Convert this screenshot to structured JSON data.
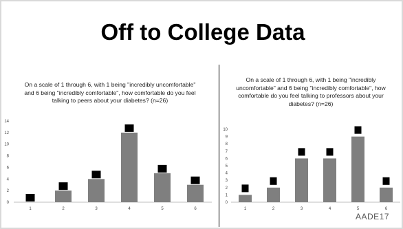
{
  "slide": {
    "title": "Off to College Data",
    "logo": "AADE17"
  },
  "chart_data": [
    {
      "type": "bar",
      "title": "On a scale of 1 through 6, with 1 being \"incredibly uncomfortable\" and 6 being \"incredibly comfortable\", how comfortable do you feel talking to peers about your diabetes? (n=26)",
      "categories": [
        "1",
        "2",
        "3",
        "4",
        "5",
        "6"
      ],
      "values": [
        0,
        2,
        4,
        12,
        5,
        3
      ],
      "ylim": [
        0,
        14
      ],
      "yticks": [
        0,
        2,
        4,
        6,
        8,
        10,
        12,
        14
      ],
      "xlabel": "",
      "ylabel": "",
      "grid": false,
      "colors": {
        "bar": "#7f7f7f",
        "marker": "#000000"
      }
    },
    {
      "type": "bar",
      "title": "On a scale of 1 through 6, with 1 being \"incredibly uncomfortable\" and 6 being \"incredibly comfortable\", how comfortable do you feel talking to professors about your diabetes? (n=26)",
      "categories": [
        "1",
        "2",
        "3",
        "4",
        "5",
        "6"
      ],
      "values": [
        1,
        2,
        6,
        6,
        9,
        2
      ],
      "ylim": [
        0,
        10
      ],
      "yticks": [
        0,
        1,
        2,
        3,
        4,
        5,
        6,
        7,
        8,
        9,
        10
      ],
      "xlabel": "",
      "ylabel": "",
      "grid": false,
      "colors": {
        "bar": "#7f7f7f",
        "marker": "#000000"
      }
    }
  ]
}
